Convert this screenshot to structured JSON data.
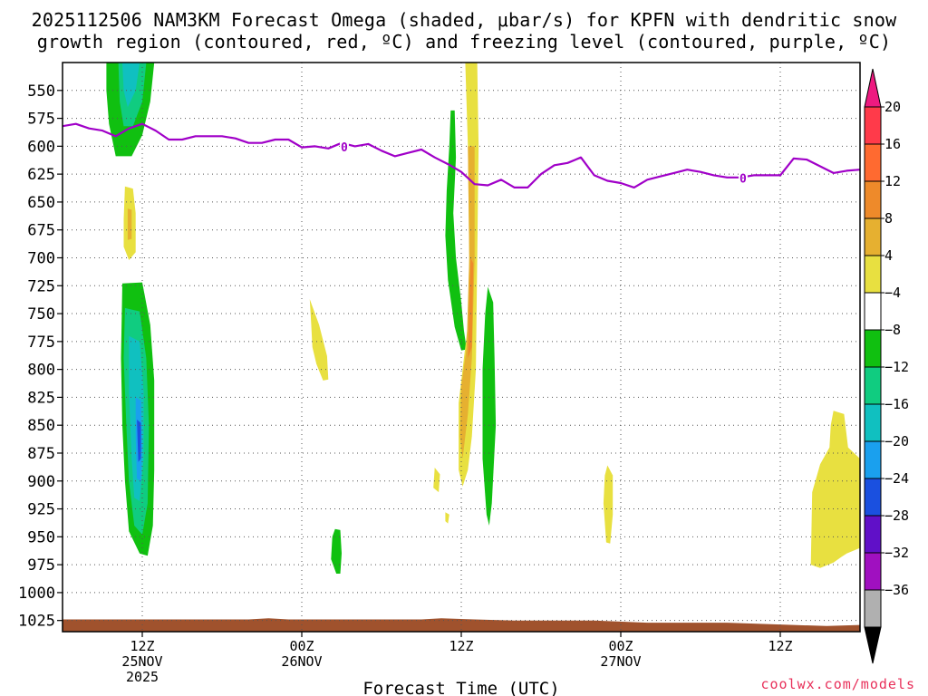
{
  "title_line1": "2025112506 NAM3KM Forecast Omega (shaded, μbar/s) for KPFN with dendritic snow",
  "title_line2": "growth region (contoured, red, ºC) and freezing level (contoured, purple, ºC)",
  "credit": "coolwx.com/models",
  "chart_data": {
    "type": "heatmap",
    "title": "2025112506 NAM3KM Forecast Omega (shaded, μbar/s) for KPFN with dendritic snow growth region (contoured, red, ºC) and freezing level (contoured, purple, ºC)",
    "xlabel": "Forecast Time (UTC)",
    "ylabel": "",
    "x_unit": "forecast hour",
    "xlim": [
      0,
      60
    ],
    "ylim_hPa": [
      1035,
      525
    ],
    "y_ticks": [
      {
        "value": 550,
        "label": "550"
      },
      {
        "value": 575,
        "label": "575"
      },
      {
        "value": 600,
        "label": "600"
      },
      {
        "value": 625,
        "label": "625"
      },
      {
        "value": 650,
        "label": "650"
      },
      {
        "value": 675,
        "label": "675"
      },
      {
        "value": 700,
        "label": "700"
      },
      {
        "value": 725,
        "label": "725"
      },
      {
        "value": 750,
        "label": "750"
      },
      {
        "value": 775,
        "label": "775"
      },
      {
        "value": 800,
        "label": "800"
      },
      {
        "value": 825,
        "label": "825"
      },
      {
        "value": 850,
        "label": "850"
      },
      {
        "value": 875,
        "label": "875"
      },
      {
        "value": 900,
        "label": "900"
      },
      {
        "value": 925,
        "label": "925"
      },
      {
        "value": 950,
        "label": "950"
      },
      {
        "value": 975,
        "label": "975"
      },
      {
        "value": 1000,
        "label": "1000"
      },
      {
        "value": 1025,
        "label": "1025"
      }
    ],
    "x_ticks": [
      {
        "value": 6,
        "lines": [
          "12Z",
          "25NOV",
          "2025"
        ]
      },
      {
        "value": 18,
        "lines": [
          "00Z",
          "26NOV"
        ]
      },
      {
        "value": 30,
        "lines": [
          "12Z"
        ]
      },
      {
        "value": 42,
        "lines": [
          "00Z",
          "27NOV"
        ]
      },
      {
        "value": 54,
        "lines": [
          "12Z"
        ]
      }
    ],
    "colorbar": {
      "levels": [
        "20",
        "16",
        "12",
        "8",
        "4",
        "−4",
        "−8",
        "−12",
        "−16",
        "−20",
        "−24",
        "−28",
        "−32",
        "−36"
      ],
      "colors": [
        "#ff3a4a",
        "#ff6a30",
        "#ee8a2a",
        "#e6b030",
        "#e8e040",
        "#ffffff",
        "#10c010",
        "#10cc80",
        "#10c0c0",
        "#1aa0ee",
        "#1a50e0",
        "#6010c8",
        "#a010c0",
        "#b0b0b0"
      ],
      "top_arrow_color": "#ee1a80",
      "bottom_arrow_color": "#000000"
    },
    "freezing_level": {
      "label": "0",
      "label_points": [
        [
          21.2,
          600.5
        ],
        [
          51.2,
          628.5
        ]
      ],
      "points": [
        [
          0,
          582
        ],
        [
          1,
          580
        ],
        [
          2,
          584
        ],
        [
          3,
          586
        ],
        [
          4,
          591
        ],
        [
          5,
          584
        ],
        [
          6,
          580
        ],
        [
          7,
          586
        ],
        [
          8,
          594
        ],
        [
          9,
          594
        ],
        [
          10,
          591
        ],
        [
          11,
          591
        ],
        [
          12,
          591
        ],
        [
          13,
          593
        ],
        [
          14,
          597
        ],
        [
          15,
          597
        ],
        [
          16,
          594
        ],
        [
          17,
          594
        ],
        [
          18,
          601
        ],
        [
          19,
          600
        ],
        [
          20,
          602
        ],
        [
          21,
          597
        ],
        [
          22,
          600
        ],
        [
          23,
          598
        ],
        [
          24,
          604
        ],
        [
          25,
          609
        ],
        [
          26,
          606
        ],
        [
          27,
          603
        ],
        [
          28,
          610
        ],
        [
          29,
          616
        ],
        [
          30,
          623
        ],
        [
          31,
          634
        ],
        [
          32,
          635
        ],
        [
          33,
          630
        ],
        [
          34,
          637
        ],
        [
          35,
          637
        ],
        [
          36,
          625
        ],
        [
          37,
          617
        ],
        [
          38,
          615
        ],
        [
          39,
          610
        ],
        [
          40,
          626
        ],
        [
          41,
          631
        ],
        [
          42,
          633
        ],
        [
          43,
          637
        ],
        [
          44,
          630
        ],
        [
          45,
          627
        ],
        [
          46,
          624
        ],
        [
          47,
          621
        ],
        [
          48,
          623
        ],
        [
          49,
          626
        ],
        [
          50,
          628
        ],
        [
          51,
          628
        ],
        [
          52,
          626
        ],
        [
          53,
          626
        ],
        [
          54,
          626
        ],
        [
          55,
          611
        ],
        [
          56,
          612
        ],
        [
          57,
          618
        ],
        [
          58,
          624
        ],
        [
          59,
          622
        ],
        [
          60,
          621
        ]
      ]
    },
    "terrain": {
      "color": "#a0522d",
      "top_points": [
        [
          0,
          1024
        ],
        [
          14,
          1024
        ],
        [
          15.5,
          1023
        ],
        [
          17,
          1024
        ],
        [
          27,
          1024
        ],
        [
          28.5,
          1023
        ],
        [
          31,
          1024
        ],
        [
          34,
          1025
        ],
        [
          40,
          1025
        ],
        [
          44,
          1027
        ],
        [
          50,
          1027
        ],
        [
          55,
          1029
        ],
        [
          57.5,
          1030
        ],
        [
          60,
          1029
        ]
      ]
    },
    "omega_regions": [
      {
        "value": -6,
        "color": "#10c010",
        "points": [
          [
            3.3,
            525
          ],
          [
            6.9,
            525
          ],
          [
            6.6,
            560
          ],
          [
            6.0,
            590
          ],
          [
            5.2,
            609
          ],
          [
            4.0,
            609
          ],
          [
            3.5,
            580
          ],
          [
            3.3,
            550
          ]
        ]
      },
      {
        "value": -10,
        "color": "#10cc80",
        "points": [
          [
            4.2,
            525
          ],
          [
            6.3,
            525
          ],
          [
            6.0,
            560
          ],
          [
            5.3,
            582
          ],
          [
            4.6,
            582
          ],
          [
            4.3,
            560
          ]
        ]
      },
      {
        "value": -14,
        "color": "#10c0c0",
        "points": [
          [
            4.5,
            525
          ],
          [
            5.8,
            525
          ],
          [
            5.5,
            550
          ],
          [
            4.9,
            565
          ],
          [
            4.6,
            550
          ]
        ]
      },
      {
        "value": 6,
        "color": "#e8e040",
        "points": [
          [
            4.7,
            636
          ],
          [
            5.3,
            638
          ],
          [
            5.5,
            660
          ],
          [
            5.5,
            695
          ],
          [
            5.0,
            702
          ],
          [
            4.6,
            690
          ],
          [
            4.6,
            665
          ]
        ]
      },
      {
        "value": 10,
        "color": "#e6b030",
        "points": [
          [
            4.9,
            656
          ],
          [
            5.2,
            657
          ],
          [
            5.2,
            683
          ],
          [
            4.9,
            684
          ]
        ]
      },
      {
        "value": -6,
        "color": "#10c010",
        "points": [
          [
            4.5,
            723
          ],
          [
            6.0,
            722
          ],
          [
            6.6,
            760
          ],
          [
            6.9,
            810
          ],
          [
            6.9,
            890
          ],
          [
            6.8,
            940
          ],
          [
            6.4,
            967
          ],
          [
            5.8,
            965
          ],
          [
            5.0,
            945
          ],
          [
            4.7,
            900
          ],
          [
            4.5,
            850
          ],
          [
            4.4,
            790
          ]
        ]
      },
      {
        "value": -10,
        "color": "#10cc80",
        "points": [
          [
            4.7,
            745
          ],
          [
            5.8,
            748
          ],
          [
            6.3,
            790
          ],
          [
            6.5,
            850
          ],
          [
            6.4,
            920
          ],
          [
            6.0,
            948
          ],
          [
            5.4,
            940
          ],
          [
            5.0,
            900
          ],
          [
            4.8,
            850
          ],
          [
            4.6,
            790
          ]
        ]
      },
      {
        "value": -14,
        "color": "#10c0c0",
        "points": [
          [
            5.0,
            770
          ],
          [
            5.8,
            775
          ],
          [
            6.1,
            820
          ],
          [
            6.1,
            880
          ],
          [
            5.8,
            918
          ],
          [
            5.4,
            915
          ],
          [
            5.2,
            880
          ],
          [
            5.0,
            820
          ]
        ]
      },
      {
        "value": -18,
        "color": "#1aa0ee",
        "points": [
          [
            5.5,
            825
          ],
          [
            5.9,
            828
          ],
          [
            6.0,
            870
          ],
          [
            5.9,
            900
          ],
          [
            5.6,
            898
          ],
          [
            5.5,
            860
          ]
        ]
      },
      {
        "value": -22,
        "color": "#1a50e0",
        "points": [
          [
            5.6,
            845
          ],
          [
            5.9,
            848
          ],
          [
            5.9,
            880
          ],
          [
            5.7,
            883
          ]
        ]
      },
      {
        "value": 6,
        "color": "#e8e040",
        "points": [
          [
            18.6,
            737
          ],
          [
            19.3,
            760
          ],
          [
            19.9,
            788
          ],
          [
            20.0,
            809
          ],
          [
            19.6,
            810
          ],
          [
            19.1,
            795
          ],
          [
            18.8,
            780
          ],
          [
            18.7,
            758
          ]
        ]
      },
      {
        "value": -6,
        "color": "#10c010",
        "points": [
          [
            20.5,
            943
          ],
          [
            20.9,
            944
          ],
          [
            21.0,
            965
          ],
          [
            20.9,
            983
          ],
          [
            20.6,
            983
          ],
          [
            20.2,
            970
          ],
          [
            20.3,
            950
          ]
        ]
      },
      {
        "value": -6,
        "color": "#10c010",
        "points": [
          [
            29.2,
            568
          ],
          [
            29.5,
            568
          ],
          [
            29.6,
            610
          ],
          [
            29.4,
            660
          ],
          [
            29.6,
            700
          ],
          [
            30.0,
            740
          ],
          [
            30.2,
            765
          ],
          [
            30.4,
            782
          ],
          [
            30.0,
            783
          ],
          [
            29.5,
            762
          ],
          [
            29.0,
            720
          ],
          [
            28.8,
            680
          ],
          [
            28.9,
            640
          ],
          [
            29.1,
            600
          ]
        ]
      },
      {
        "value": 6,
        "color": "#e8e040",
        "points": [
          [
            30.3,
            525
          ],
          [
            31.2,
            525
          ],
          [
            31.3,
            600
          ],
          [
            31.2,
            700
          ],
          [
            31.1,
            800
          ],
          [
            30.8,
            860
          ],
          [
            30.5,
            890
          ],
          [
            30.1,
            905
          ],
          [
            29.8,
            890
          ],
          [
            29.8,
            830
          ],
          [
            30.2,
            790
          ],
          [
            30.5,
            760
          ],
          [
            30.6,
            700
          ],
          [
            30.5,
            600
          ]
        ]
      },
      {
        "value": 10,
        "color": "#e6b030",
        "points": [
          [
            30.5,
            600
          ],
          [
            31.0,
            600
          ],
          [
            31.0,
            700
          ],
          [
            30.8,
            790
          ],
          [
            30.5,
            840
          ],
          [
            30.1,
            880
          ],
          [
            29.9,
            860
          ],
          [
            30.0,
            815
          ],
          [
            30.4,
            780
          ],
          [
            30.6,
            700
          ]
        ]
      },
      {
        "value": 14,
        "color": "#ee8a2a",
        "points": [
          [
            30.7,
            700
          ],
          [
            30.9,
            705
          ],
          [
            30.8,
            780
          ],
          [
            30.5,
            790
          ],
          [
            30.6,
            740
          ]
        ]
      },
      {
        "value": 6,
        "color": "#e8e040",
        "points": [
          [
            28.0,
            888
          ],
          [
            28.4,
            894
          ],
          [
            28.3,
            910
          ],
          [
            27.9,
            906
          ]
        ]
      },
      {
        "value": 6,
        "color": "#e8e040",
        "points": [
          [
            28.8,
            928
          ],
          [
            29.1,
            930
          ],
          [
            29.0,
            938
          ],
          [
            28.8,
            936
          ]
        ]
      },
      {
        "value": -6,
        "color": "#10c010",
        "points": [
          [
            32.0,
            726
          ],
          [
            32.4,
            740
          ],
          [
            32.5,
            790
          ],
          [
            32.6,
            850
          ],
          [
            32.3,
            920
          ],
          [
            32.1,
            940
          ],
          [
            31.9,
            930
          ],
          [
            31.6,
            880
          ],
          [
            31.6,
            800
          ],
          [
            31.8,
            750
          ]
        ]
      },
      {
        "value": 6,
        "color": "#e8e040",
        "points": [
          [
            41.0,
            886
          ],
          [
            41.4,
            895
          ],
          [
            41.4,
            930
          ],
          [
            41.2,
            956
          ],
          [
            40.9,
            955
          ],
          [
            40.7,
            920
          ],
          [
            40.8,
            895
          ]
        ]
      },
      {
        "value": 6,
        "color": "#e8e040",
        "points": [
          [
            58.0,
            837
          ],
          [
            58.8,
            840
          ],
          [
            59.1,
            870
          ],
          [
            60.0,
            880
          ],
          [
            60.0,
            960
          ],
          [
            59.0,
            965
          ],
          [
            58.6,
            968
          ],
          [
            58.0,
            973
          ],
          [
            57.0,
            978
          ],
          [
            56.3,
            975
          ],
          [
            56.4,
            910
          ],
          [
            57.0,
            885
          ],
          [
            57.7,
            870
          ],
          [
            57.8,
            850
          ]
        ]
      }
    ]
  }
}
